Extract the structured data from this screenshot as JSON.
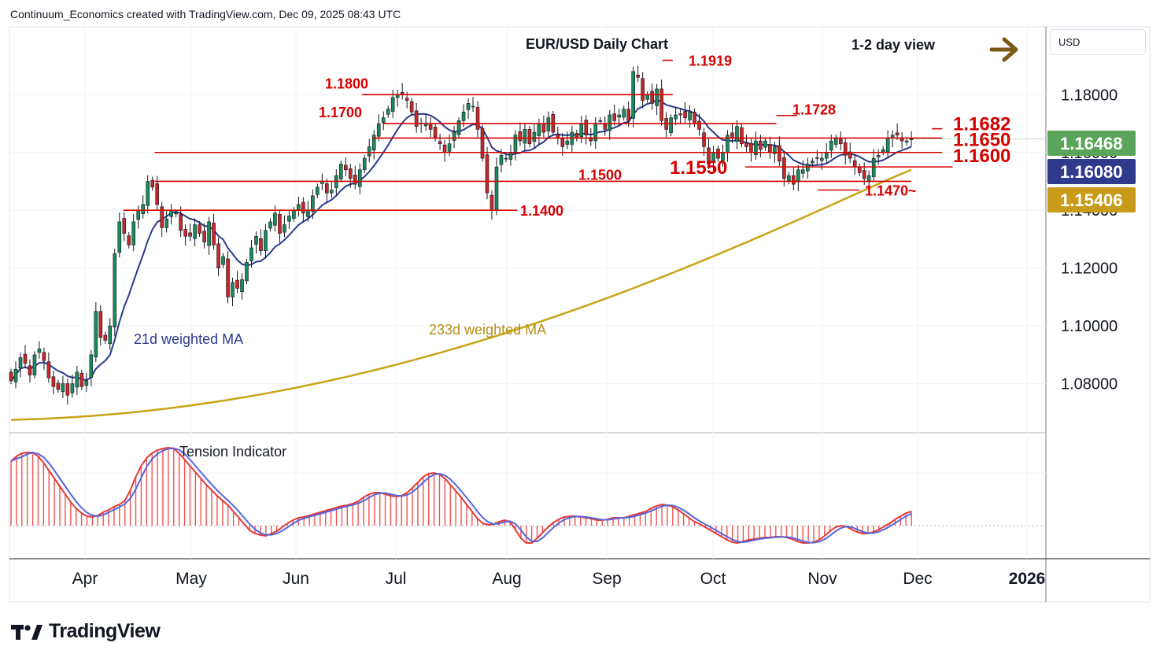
{
  "header": {
    "credit": "Continuum_Economics created with TradingView.com, Dec 09, 2025 08:43 UTC"
  },
  "axis": {
    "currency": "USD"
  },
  "colors": {
    "up_candle": "#1b8a5a",
    "down_candle": "#c62828",
    "ma21": "#2b3a8f",
    "ma233": "#c8a415",
    "level_line": "#d50000",
    "arrow": "#7a5a14",
    "last_price_bg": "#5aa55a",
    "ma21_price_bg": "#2e3a8c",
    "ma233_price_bg": "#c99b1a"
  },
  "logo": {
    "text": "TradingView"
  },
  "chart_data": [
    {
      "type": "candlestick",
      "title": "EUR/USD Daily Chart",
      "subtitle": "1-2 day view",
      "ylim": [
        1.063,
        1.2035
      ],
      "yticks": [
        "1.18000",
        "1.16000",
        "1.14000",
        "1.12000",
        "1.10000",
        "1.08000"
      ],
      "ytick_values": [
        1.18,
        1.16,
        1.14,
        1.12,
        1.1,
        1.08
      ],
      "xticks": [
        "Apr",
        "May",
        "Jun",
        "Jul",
        "Aug",
        "Sep",
        "Oct",
        "Nov",
        "Dec",
        "2026"
      ],
      "price_labels": [
        {
          "text": "1.16468",
          "value": 1.16468,
          "kind": "last"
        },
        {
          "text": "1.16080",
          "value": 1.1608,
          "kind": "ma21"
        },
        {
          "text": "1.15406",
          "value": 1.15406,
          "kind": "ma233"
        }
      ],
      "levels": [
        {
          "value": 1.18,
          "label": "1.1800",
          "x_from": 0.34,
          "x_to": 0.64
        },
        {
          "value": 1.17,
          "label": "1.1700",
          "x_from": 0.36,
          "x_to": 0.74
        },
        {
          "value": 1.1728,
          "label": "1.1728",
          "x_from": 0.74,
          "x_to": 0.76
        },
        {
          "value": 1.1682,
          "label": "1.1682",
          "x_from": 0.89,
          "x_to": 0.9
        },
        {
          "value": 1.165,
          "label": "1.1650",
          "x_from": 0.35,
          "x_to": 0.9
        },
        {
          "value": 1.16,
          "label": "1.1600",
          "x_from": 0.14,
          "x_to": 0.9
        },
        {
          "value": 1.155,
          "label": "1.1550",
          "x_from": 0.71,
          "x_to": 0.91
        },
        {
          "value": 1.15,
          "label": "1.1500",
          "x_from": 0.14,
          "x_to": 0.87
        },
        {
          "value": 1.147,
          "label": "1.1470~",
          "x_from": 0.78,
          "x_to": 0.82
        },
        {
          "value": 1.14,
          "label": "1.1400",
          "x_from": 0.11,
          "x_to": 0.49
        },
        {
          "value": 1.1919,
          "label": "1.1919",
          "x_from": 0.63,
          "x_to": 0.64
        }
      ],
      "annotations": [
        "21d weighted MA",
        "233d weighted MA"
      ],
      "closes": [
        1.081,
        1.085,
        1.089,
        1.087,
        1.083,
        1.09,
        1.092,
        1.088,
        1.082,
        1.079,
        1.078,
        1.08,
        1.076,
        1.08,
        1.084,
        1.079,
        1.081,
        1.09,
        1.105,
        1.096,
        1.095,
        1.1,
        1.125,
        1.136,
        1.132,
        1.128,
        1.136,
        1.14,
        1.142,
        1.15,
        1.148,
        1.142,
        1.134,
        1.137,
        1.14,
        1.139,
        1.133,
        1.131,
        1.131,
        1.135,
        1.132,
        1.129,
        1.136,
        1.128,
        1.12,
        1.124,
        1.11,
        1.115,
        1.113,
        1.116,
        1.122,
        1.127,
        1.131,
        1.126,
        1.133,
        1.136,
        1.139,
        1.132,
        1.135,
        1.138,
        1.14,
        1.142,
        1.139,
        1.14,
        1.145,
        1.148,
        1.15,
        1.146,
        1.147,
        1.152,
        1.156,
        1.154,
        1.151,
        1.149,
        1.154,
        1.158,
        1.162,
        1.166,
        1.17,
        1.172,
        1.175,
        1.179,
        1.18,
        1.18,
        1.178,
        1.174,
        1.169,
        1.17,
        1.17,
        1.168,
        1.165,
        1.163,
        1.16,
        1.163,
        1.167,
        1.171,
        1.174,
        1.177,
        1.176,
        1.168,
        1.158,
        1.146,
        1.14,
        1.155,
        1.159,
        1.158,
        1.16,
        1.166,
        1.164,
        1.168,
        1.163,
        1.167,
        1.17,
        1.167,
        1.172,
        1.167,
        1.165,
        1.162,
        1.164,
        1.167,
        1.165,
        1.17,
        1.166,
        1.164,
        1.17,
        1.171,
        1.168,
        1.173,
        1.171,
        1.173,
        1.175,
        1.171,
        1.188,
        1.186,
        1.178,
        1.18,
        1.177,
        1.182,
        1.171,
        1.168,
        1.172,
        1.173,
        1.173,
        1.172,
        1.174,
        1.17,
        1.168,
        1.162,
        1.156,
        1.16,
        1.158,
        1.16,
        1.166,
        1.165,
        1.169,
        1.163,
        1.162,
        1.16,
        1.164,
        1.161,
        1.164,
        1.16,
        1.162,
        1.157,
        1.151,
        1.152,
        1.149,
        1.154,
        1.154,
        1.156,
        1.157,
        1.158,
        1.158,
        1.16,
        1.164,
        1.165,
        1.163,
        1.159,
        1.158,
        1.155,
        1.153,
        1.151,
        1.152,
        1.158,
        1.159,
        1.161,
        1.165,
        1.166,
        1.166,
        1.164,
        1.164,
        1.1647
      ]
    },
    {
      "type": "area",
      "title": "Tension Indicator",
      "values": [
        0.82,
        0.88,
        0.92,
        0.93,
        0.93,
        0.88,
        0.8,
        0.7,
        0.6,
        0.5,
        0.4,
        0.3,
        0.22,
        0.16,
        0.12,
        0.11,
        0.13,
        0.17,
        0.2,
        0.24,
        0.27,
        0.32,
        0.45,
        0.62,
        0.76,
        0.86,
        0.92,
        0.96,
        0.98,
        0.99,
        0.98,
        0.92,
        0.84,
        0.76,
        0.68,
        0.6,
        0.52,
        0.45,
        0.38,
        0.32,
        0.26,
        0.18,
        0.1,
        0.02,
        -0.06,
        -0.1,
        -0.12,
        -0.13,
        -0.1,
        -0.07,
        -0.02,
        0.03,
        0.07,
        0.1,
        0.11,
        0.13,
        0.15,
        0.17,
        0.19,
        0.21,
        0.23,
        0.25,
        0.26,
        0.28,
        0.31,
        0.36,
        0.4,
        0.42,
        0.42,
        0.4,
        0.38,
        0.37,
        0.38,
        0.42,
        0.48,
        0.55,
        0.62,
        0.66,
        0.67,
        0.65,
        0.6,
        0.52,
        0.44,
        0.36,
        0.27,
        0.18,
        0.09,
        0.03,
        0.01,
        0.02,
        0.05,
        0.07,
        0.05,
        -0.05,
        -0.16,
        -0.22,
        -0.22,
        -0.16,
        -0.09,
        -0.02,
        0.04,
        0.08,
        0.11,
        0.12,
        0.12,
        0.11,
        0.1,
        0.09,
        0.07,
        0.07,
        0.08,
        0.1,
        0.1,
        0.1,
        0.12,
        0.14,
        0.16,
        0.18,
        0.22,
        0.25,
        0.27,
        0.26,
        0.24,
        0.2,
        0.15,
        0.1,
        0.05,
        0.02,
        -0.02,
        -0.06,
        -0.1,
        -0.14,
        -0.18,
        -0.21,
        -0.22,
        -0.2,
        -0.18,
        -0.17,
        -0.16,
        -0.15,
        -0.15,
        -0.14,
        -0.14,
        -0.15,
        -0.17,
        -0.2,
        -0.22,
        -0.22,
        -0.21,
        -0.18,
        -0.13,
        -0.07,
        -0.02,
        0.0,
        -0.01,
        -0.05,
        -0.08,
        -0.1,
        -0.1,
        -0.08,
        -0.05,
        -0.01,
        0.03,
        0.08,
        0.12,
        0.16,
        0.18
      ]
    }
  ]
}
